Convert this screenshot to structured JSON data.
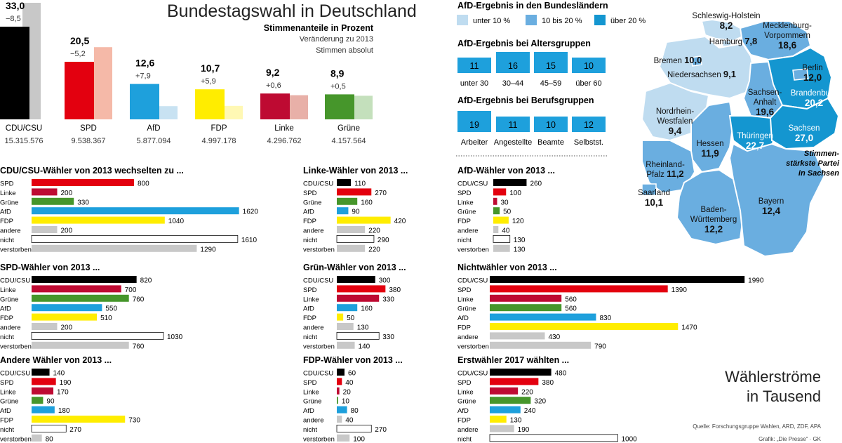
{
  "title": "Bundestagswahl in Deutschland",
  "subtitle": "Stimmenanteile in Prozent",
  "legend_change": "Veränderung zu 2013",
  "legend_abs": "Stimmen absolut",
  "colors": {
    "CDU/CSU": "#000000",
    "SPD": "#e3000f",
    "AfD": "#1ea0dc",
    "FDP": "#ffed00",
    "Linke": "#be0a32",
    "Grüne": "#46962b",
    "andere": "#c8c8c8",
    "nicht": "#ffffff",
    "verstorben": "#c8c8c8",
    "map_low": "#bfdcf0",
    "map_mid": "#6aaee0",
    "map_high": "#1496d0"
  },
  "chart_data": [
    {
      "type": "bar",
      "id": "results",
      "title": "Bundestagswahl in Deutschland",
      "subtitle": "Stimmenanteile in Prozent",
      "categories": [
        "CDU/CSU",
        "SPD",
        "AfD",
        "FDP",
        "Linke",
        "Grüne"
      ],
      "series": [
        {
          "name": "2017",
          "values": [
            33.0,
            20.5,
            12.6,
            10.7,
            9.2,
            8.9
          ]
        },
        {
          "name": "2013",
          "values": [
            41.5,
            25.7,
            4.7,
            4.8,
            8.6,
            8.4
          ]
        }
      ],
      "value_labels": [
        "33,0",
        "20,5",
        "12,6",
        "10,7",
        "9,2",
        "8,9"
      ],
      "change_labels": [
        "−8,5",
        "−5,2",
        "+7,9",
        "+5,9",
        "+0,6",
        "+0,5"
      ],
      "absolute_labels": [
        "15.315.576",
        "9.538.367",
        "5.877.094",
        "4.997.178",
        "4.296.762",
        "4.157.564"
      ]
    },
    {
      "type": "table",
      "id": "afd_states",
      "title": "AfD-Ergebnis in den Bundesländern",
      "legend": [
        "unter 10 %",
        "10 bis 20 %",
        "über 20 %"
      ],
      "categories": [
        "Schleswig-Holstein",
        "Mecklenburg-Vorpommern",
        "Hamburg",
        "Bremen",
        "Niedersachsen",
        "Berlin",
        "Brandenburg",
        "Sachsen-Anhalt",
        "Nordrhein-Westfalen",
        "Hessen",
        "Thüringen",
        "Sachsen",
        "Rheinland-Pfalz",
        "Saarland",
        "Baden-Württemberg",
        "Bayern"
      ],
      "display_values": [
        "8,2",
        "18,6",
        "7,8",
        "10,0",
        "9,1",
        "12,0",
        "20,2",
        "19,6",
        "9,4",
        "11,9",
        "22,7",
        "27,0",
        "11,2",
        "10,1",
        "12,2",
        "12,4"
      ],
      "values": [
        8.2,
        18.6,
        7.8,
        10.0,
        9.1,
        12.0,
        20.2,
        19.6,
        9.4,
        11.9,
        22.7,
        27.0,
        11.2,
        10.1,
        12.2,
        12.4
      ],
      "annotation": "Stimmen-stärkste Partei in Sachsen"
    },
    {
      "type": "bar",
      "id": "afd_age",
      "title": "AfD-Ergebnis bei Altersgruppen",
      "categories": [
        "unter 30",
        "30–44",
        "45–59",
        "über 60"
      ],
      "values": [
        11,
        16,
        15,
        10
      ]
    },
    {
      "type": "bar",
      "id": "afd_job",
      "title": "AfD-Ergebnis bei Berufsgruppen",
      "categories": [
        "Arbeiter",
        "Angestellte",
        "Beamte",
        "Selbstst."
      ],
      "values": [
        19,
        11,
        10,
        12
      ]
    },
    {
      "type": "bar",
      "id": "flow_cdu",
      "title": "CDU/CSU-Wähler von 2013 wechselten zu ...",
      "categories": [
        "SPD",
        "Linke",
        "Grüne",
        "AfD",
        "FDP",
        "andere",
        "nicht",
        "verstorben"
      ],
      "values": [
        800,
        200,
        330,
        1620,
        1040,
        200,
        1610,
        1290
      ]
    },
    {
      "type": "bar",
      "id": "flow_spd",
      "title": "SPD-Wähler von 2013 ...",
      "categories": [
        "CDU/CSU",
        "Linke",
        "Grüne",
        "AfD",
        "FDP",
        "andere",
        "nicht",
        "verstorben"
      ],
      "values": [
        820,
        700,
        760,
        550,
        510,
        200,
        1030,
        760
      ]
    },
    {
      "type": "bar",
      "id": "flow_andere",
      "title": "Andere Wähler von 2013 ...",
      "categories": [
        "CDU/CSU",
        "SPD",
        "Linke",
        "Grüne",
        "AfD",
        "FDP",
        "nicht",
        "verstorben"
      ],
      "values": [
        140,
        190,
        170,
        90,
        180,
        730,
        270,
        80
      ]
    },
    {
      "type": "bar",
      "id": "flow_linke",
      "title": "Linke-Wähler von 2013 ...",
      "categories": [
        "CDU/CSU",
        "SPD",
        "Grüne",
        "AfD",
        "FDP",
        "andere",
        "nicht",
        "verstorben"
      ],
      "values": [
        110,
        270,
        160,
        90,
        420,
        220,
        290,
        220
      ]
    },
    {
      "type": "bar",
      "id": "flow_gruene",
      "title": "Grün-Wähler von 2013 ...",
      "categories": [
        "CDU/CSU",
        "SPD",
        "Linke",
        "AfD",
        "FDP",
        "andere",
        "nicht",
        "verstorben"
      ],
      "values": [
        300,
        380,
        330,
        160,
        50,
        130,
        330,
        140
      ]
    },
    {
      "type": "bar",
      "id": "flow_fdp",
      "title": "FDP-Wähler von 2013 ...",
      "categories": [
        "CDU/CSU",
        "SPD",
        "Linke",
        "Grüne",
        "AfD",
        "andere",
        "nicht",
        "verstorben"
      ],
      "values": [
        60,
        40,
        20,
        10,
        80,
        40,
        270,
        100
      ]
    },
    {
      "type": "bar",
      "id": "flow_afd",
      "title": "AfD-Wähler von 2013 ...",
      "categories": [
        "CDU/CSU",
        "SPD",
        "Linke",
        "Grüne",
        "FDP",
        "andere",
        "nicht",
        "verstorben"
      ],
      "values": [
        260,
        100,
        30,
        50,
        120,
        40,
        130,
        130
      ]
    },
    {
      "type": "bar",
      "id": "flow_nicht",
      "title": "Nichtwähler von 2013 ...",
      "categories": [
        "CDU/CSU",
        "SPD",
        "Linke",
        "Grüne",
        "AfD",
        "FDP",
        "andere",
        "verstorben"
      ],
      "values": [
        1990,
        1390,
        560,
        560,
        830,
        1470,
        430,
        790
      ]
    },
    {
      "type": "bar",
      "id": "flow_erst",
      "title": "Erstwähler 2017 wählten ...",
      "categories": [
        "CDU/CSU",
        "SPD",
        "Linke",
        "Grüne",
        "AfD",
        "FDP",
        "andere",
        "nicht"
      ],
      "values": [
        480,
        380,
        220,
        320,
        240,
        130,
        190,
        1000
      ]
    }
  ],
  "flows_title": "Wählerströme in Tausend",
  "source": "Quelle: Forschungsgruppe Wahlen, ARD, ZDF, APA",
  "credit": "Grafik: „Die Presse“ · GK"
}
